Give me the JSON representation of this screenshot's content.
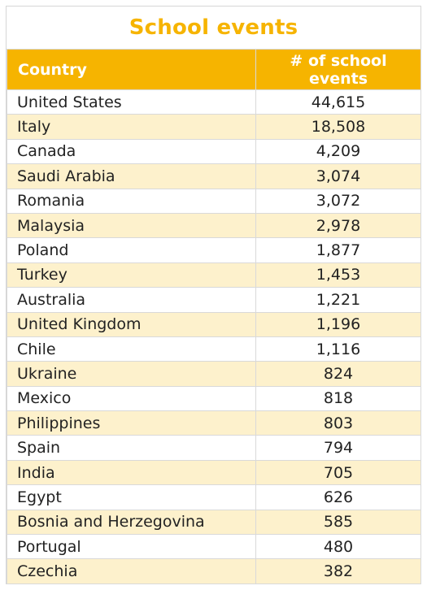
{
  "title": "School events",
  "header": {
    "country": "Country",
    "events_line1": "# of school",
    "events_line2": "events"
  },
  "rows": [
    {
      "country": "United States",
      "events": "44,615"
    },
    {
      "country": "Italy",
      "events": "18,508"
    },
    {
      "country": "Canada",
      "events": "4,209"
    },
    {
      "country": "Saudi Arabia",
      "events": "3,074"
    },
    {
      "country": "Romania",
      "events": "3,072"
    },
    {
      "country": "Malaysia",
      "events": "2,978"
    },
    {
      "country": "Poland",
      "events": "1,877"
    },
    {
      "country": "Turkey",
      "events": "1,453"
    },
    {
      "country": "Australia",
      "events": "1,221"
    },
    {
      "country": "United Kingdom",
      "events": "1,196"
    },
    {
      "country": "Chile",
      "events": "1,116"
    },
    {
      "country": "Ukraine",
      "events": "824"
    },
    {
      "country": "Mexico",
      "events": "818"
    },
    {
      "country": "Philippines",
      "events": "803"
    },
    {
      "country": "Spain",
      "events": "794"
    },
    {
      "country": "India",
      "events": "705"
    },
    {
      "country": "Egypt",
      "events": "626"
    },
    {
      "country": "Bosnia and Herzegovina",
      "events": "585"
    },
    {
      "country": "Portugal",
      "events": "480"
    },
    {
      "country": "Czechia",
      "events": "382"
    }
  ],
  "colors": {
    "accent": "#f6b400",
    "stripe": "#fdf1cc",
    "border": "#d9d9d9"
  }
}
